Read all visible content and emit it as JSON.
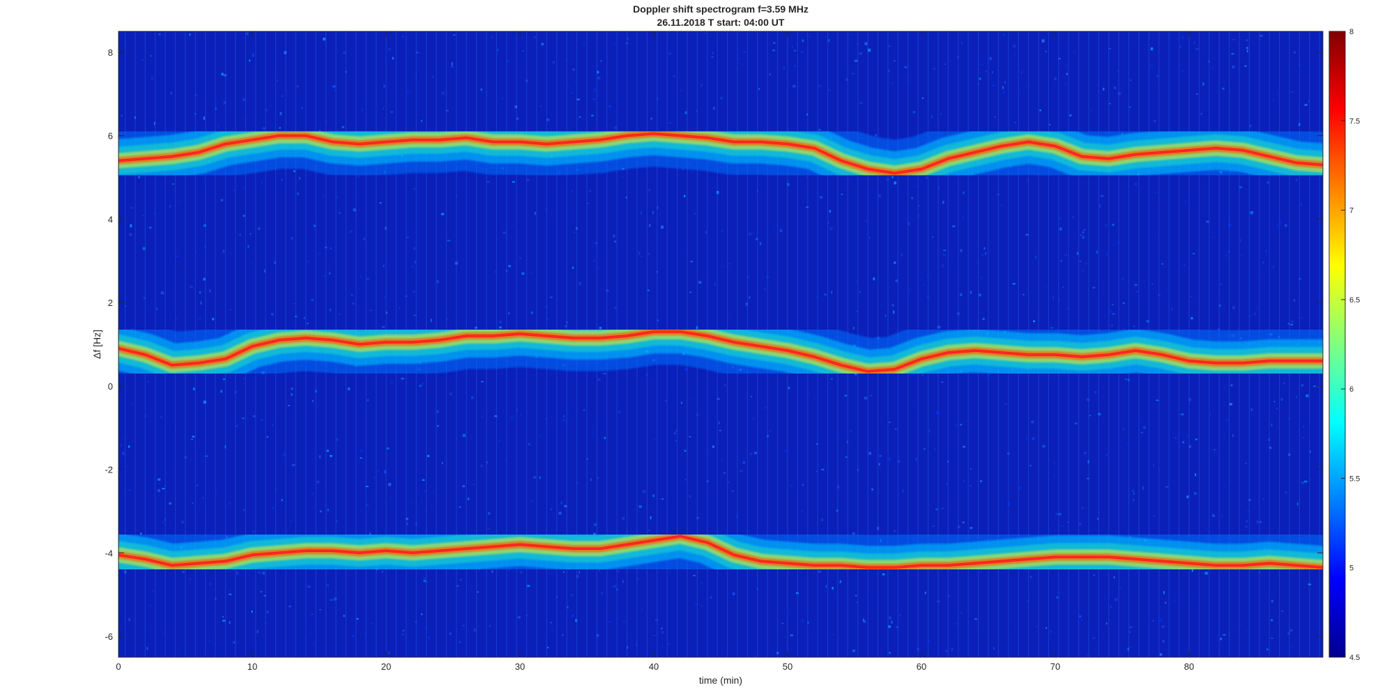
{
  "chart_data": {
    "type": "heatmap",
    "title": "Doppler shift spectrogram f=3.59 MHz",
    "subtitle": "26.11.2018   T start: 04:00 UT",
    "xlabel": "time (min)",
    "ylabel": "Δf [Hz]",
    "xlim": [
      0,
      90
    ],
    "ylim": [
      -6.5,
      8.5
    ],
    "xticks": [
      "0",
      "10",
      "20",
      "30",
      "40",
      "50",
      "60",
      "70",
      "80"
    ],
    "yticks": [
      "-6",
      "-4",
      "-2",
      "0",
      "2",
      "4",
      "6",
      "8"
    ],
    "colorbar": {
      "range": [
        4.5,
        8
      ],
      "ticks": [
        "4.5",
        "5",
        "5.5",
        "6",
        "6.5",
        "7",
        "7.5",
        "8"
      ],
      "colormap": "jet"
    },
    "series": [
      {
        "x": [
          0,
          2,
          4,
          6,
          8,
          10,
          12,
          14,
          16,
          18,
          20,
          22,
          24,
          26,
          28,
          30,
          32,
          34,
          36,
          38,
          40,
          42,
          44,
          46,
          48,
          50,
          52,
          54,
          56,
          58,
          60,
          62,
          64,
          66,
          68,
          70,
          72,
          74,
          76,
          78,
          80,
          82,
          84,
          86,
          88,
          90
        ],
        "values": [
          5.4,
          5.45,
          5.5,
          5.6,
          5.8,
          5.9,
          6.0,
          6.0,
          5.85,
          5.8,
          5.85,
          5.9,
          5.9,
          5.95,
          5.85,
          5.85,
          5.8,
          5.85,
          5.9,
          6.0,
          6.05,
          6.0,
          5.95,
          5.85,
          5.85,
          5.8,
          5.7,
          5.4,
          5.2,
          5.1,
          5.2,
          5.45,
          5.6,
          5.75,
          5.85,
          5.75,
          5.5,
          5.45,
          5.55,
          5.6,
          5.65,
          5.7,
          5.65,
          5.5,
          5.35,
          5.3
        ]
      },
      {
        "x": [
          0,
          2,
          4,
          6,
          8,
          10,
          12,
          14,
          16,
          18,
          20,
          22,
          24,
          26,
          28,
          30,
          32,
          34,
          36,
          38,
          40,
          42,
          44,
          46,
          48,
          50,
          52,
          54,
          56,
          58,
          60,
          62,
          64,
          66,
          68,
          70,
          72,
          74,
          76,
          78,
          80,
          82,
          84,
          86,
          88,
          90
        ],
        "values": [
          0.9,
          0.75,
          0.5,
          0.55,
          0.65,
          0.95,
          1.1,
          1.15,
          1.1,
          1.0,
          1.05,
          1.05,
          1.1,
          1.2,
          1.2,
          1.25,
          1.2,
          1.15,
          1.15,
          1.2,
          1.3,
          1.3,
          1.2,
          1.05,
          0.95,
          0.85,
          0.7,
          0.5,
          0.35,
          0.4,
          0.65,
          0.8,
          0.85,
          0.8,
          0.75,
          0.75,
          0.7,
          0.75,
          0.85,
          0.75,
          0.6,
          0.55,
          0.55,
          0.6,
          0.6,
          0.6
        ]
      },
      {
        "x": [
          0,
          2,
          4,
          6,
          8,
          10,
          12,
          14,
          16,
          18,
          20,
          22,
          24,
          26,
          28,
          30,
          32,
          34,
          36,
          38,
          40,
          42,
          44,
          46,
          48,
          50,
          52,
          54,
          56,
          58,
          60,
          62,
          64,
          66,
          68,
          70,
          72,
          74,
          76,
          78,
          80,
          82,
          84,
          86,
          88,
          90
        ],
        "values": [
          -4.05,
          -4.15,
          -4.3,
          -4.25,
          -4.2,
          -4.05,
          -4.0,
          -3.95,
          -3.95,
          -4.0,
          -3.95,
          -4.0,
          -3.95,
          -3.9,
          -3.85,
          -3.8,
          -3.85,
          -3.9,
          -3.9,
          -3.8,
          -3.7,
          -3.6,
          -3.75,
          -4.05,
          -4.2,
          -4.25,
          -4.3,
          -4.3,
          -4.35,
          -4.35,
          -4.3,
          -4.3,
          -4.25,
          -4.2,
          -4.15,
          -4.1,
          -4.1,
          -4.1,
          -4.15,
          -4.2,
          -4.25,
          -4.3,
          -4.3,
          -4.25,
          -4.3,
          -4.35
        ]
      }
    ]
  }
}
